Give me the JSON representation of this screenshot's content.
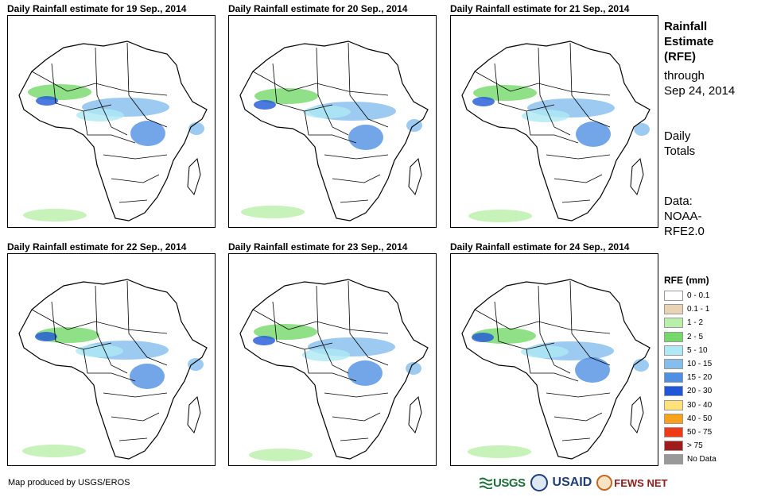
{
  "panels": [
    {
      "title": "Daily Rainfall estimate for 19 Sep., 2014"
    },
    {
      "title": "Daily Rainfall estimate for 20 Sep., 2014"
    },
    {
      "title": "Daily Rainfall estimate for 21 Sep., 2014"
    },
    {
      "title": "Daily Rainfall estimate for 22 Sep., 2014"
    },
    {
      "title": "Daily Rainfall estimate for 23 Sep., 2014"
    },
    {
      "title": "Daily Rainfall estimate for 24 Sep., 2014"
    }
  ],
  "side": {
    "title_lines": [
      "Rainfall",
      "Estimate",
      "(RFE)"
    ],
    "through_lines": [
      "through",
      "Sep 24, 2014"
    ],
    "daily_lines": [
      "Daily",
      "Totals"
    ],
    "data_lines": [
      "Data:",
      "NOAA-",
      "RFE2.0"
    ]
  },
  "legend": {
    "title": "RFE (mm)",
    "items": [
      {
        "label": "0 - 0.1",
        "color": "#ffffff"
      },
      {
        "label": "0.1 - 1",
        "color": "#e8d3b4"
      },
      {
        "label": "1 - 2",
        "color": "#b9efa8"
      },
      {
        "label": "2 - 5",
        "color": "#74d86a"
      },
      {
        "label": "5 - 10",
        "color": "#aee9f4"
      },
      {
        "label": "10 - 15",
        "color": "#85bdec"
      },
      {
        "label": "15 - 20",
        "color": "#4f90e4"
      },
      {
        "label": "20 - 30",
        "color": "#1f57d8"
      },
      {
        "label": "30 - 40",
        "color": "#ffe27a"
      },
      {
        "label": "40 - 50",
        "color": "#f7a21b"
      },
      {
        "label": "50 - 75",
        "color": "#ee3a16"
      },
      {
        "label": "> 75",
        "color": "#a01c1c"
      },
      {
        "label": "No Data",
        "color": "#999999"
      }
    ]
  },
  "credit": "Map produced by USGS/EROS",
  "logos": {
    "usgs": "USGS",
    "usaid": "USAID",
    "fews": "FEWS NET"
  }
}
